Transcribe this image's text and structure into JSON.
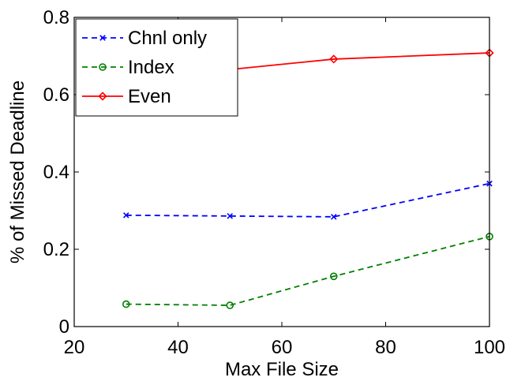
{
  "chart_data": {
    "type": "line",
    "xlabel": "Max File Size",
    "ylabel": "% of Missed Deadline",
    "xlim": [
      20,
      100
    ],
    "ylim": [
      0,
      0.8
    ],
    "xticks": [
      20,
      40,
      60,
      80,
      100
    ],
    "yticks": [
      0,
      0.2,
      0.4,
      0.6,
      0.8
    ],
    "xtick_labels": [
      "20",
      "40",
      "60",
      "80",
      "100"
    ],
    "ytick_labels": [
      "0",
      "0.2",
      "0.4",
      "0.6",
      "0.8"
    ],
    "grid": false,
    "legend_position": "top-left",
    "series": [
      {
        "name": "Chnl only",
        "x": [
          30,
          50,
          70,
          100
        ],
        "y": [
          0.288,
          0.286,
          0.284,
          0.37
        ],
        "color": "#0000ff",
        "line": "dashed",
        "marker": "x"
      },
      {
        "name": "Index",
        "x": [
          30,
          50,
          70,
          100
        ],
        "y": [
          0.058,
          0.055,
          0.13,
          0.233
        ],
        "color": "#008000",
        "line": "dashed",
        "marker": "circle"
      },
      {
        "name": "Even",
        "x": [
          30,
          50,
          70,
          100
        ],
        "y": [
          0.635,
          0.665,
          0.692,
          0.708
        ],
        "color": "#ff0000",
        "line": "solid",
        "marker": "diamond"
      }
    ]
  }
}
